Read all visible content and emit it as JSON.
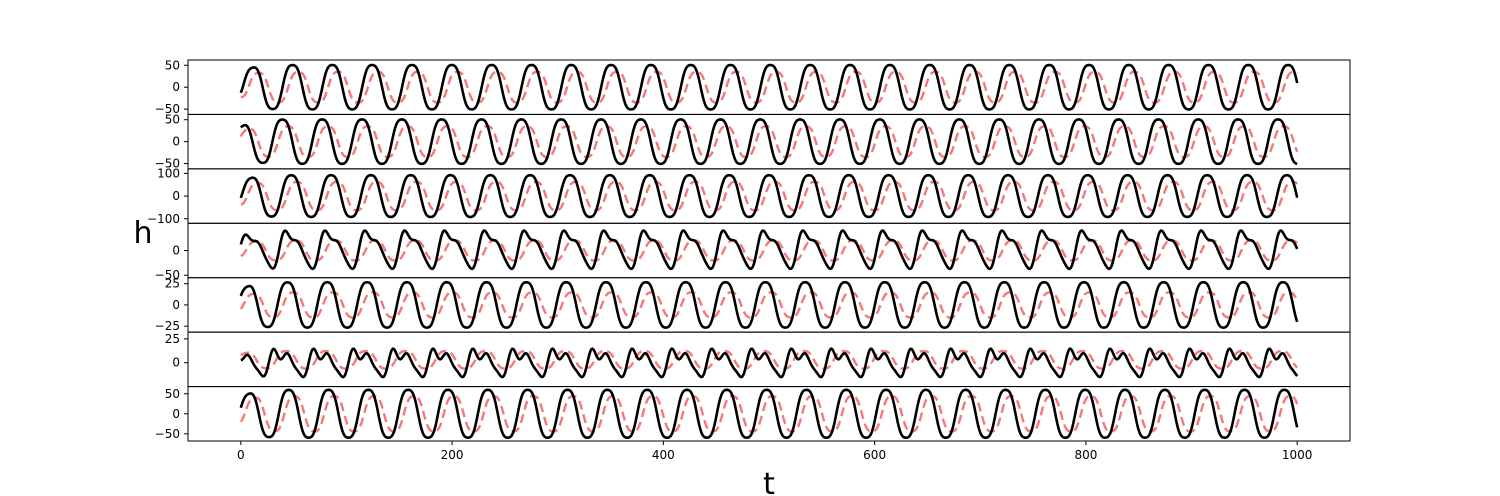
{
  "chart_data": {
    "type": "line",
    "xlabel": "t",
    "ylabel": "h",
    "xlim": [
      -50,
      1050
    ],
    "xticks": [
      0,
      200,
      400,
      600,
      800,
      1000
    ],
    "t_range": [
      0,
      1000
    ],
    "colors": {
      "solid": "#000000",
      "dashed": "#f47a7a"
    },
    "grid": false,
    "panels": [
      {
        "ylim": [
          -62,
          62
        ],
        "yticks": [
          50,
          0,
          -50
        ],
        "solid": {
          "amplitude": 55,
          "period": 37.7,
          "phase": -0.3,
          "shape": "sine"
        },
        "dashed": {
          "amplitude": 38,
          "period": 37.7,
          "phase": -1.2,
          "shape": "sine"
        }
      },
      {
        "ylim": [
          -62,
          62
        ],
        "yticks": [
          50,
          0,
          -50
        ],
        "solid": {
          "amplitude": 55,
          "period": 37.7,
          "phase": 1.3,
          "shape": "sine"
        },
        "dashed": {
          "amplitude": 38,
          "period": 37.7,
          "phase": 0.4,
          "shape": "sine"
        }
      },
      {
        "ylim": [
          -120,
          120
        ],
        "yticks": [
          100,
          0,
          -100
        ],
        "solid": {
          "amplitude": 100,
          "period": 37.7,
          "phase": -0.1,
          "shape": "sine"
        },
        "dashed": {
          "amplitude": 68,
          "period": 37.7,
          "phase": -1.0,
          "shape": "sine"
        }
      },
      {
        "ylim": [
          -55,
          55
        ],
        "yticks": [
          0,
          -50
        ],
        "solid": {
          "amplitude": 42,
          "offset": 4,
          "period": 37.7,
          "phase": 0.1,
          "shape": "sawtooth"
        },
        "dashed": {
          "amplitude": 22,
          "offset": 0,
          "period": 37.7,
          "phase": -0.8,
          "shape": "sine"
        }
      },
      {
        "ylim": [
          -32,
          32
        ],
        "yticks": [
          25,
          0,
          -25
        ],
        "solid": {
          "amplitude": 29,
          "period": 37.7,
          "phase": 0.5,
          "shape": "sine"
        },
        "dashed": {
          "amplitude": 16,
          "period": 37.7,
          "phase": -0.4,
          "shape": "sine"
        }
      },
      {
        "ylim": [
          -25,
          32
        ],
        "yticks": [
          25,
          0
        ],
        "solid": {
          "amplitude": 16,
          "offset": 1,
          "period": 37.7,
          "phase": 1.6,
          "shape": "spiky"
        },
        "dashed": {
          "amplitude": 10,
          "offset": 3,
          "period": 37.7,
          "phase": 0.7,
          "shape": "sine"
        }
      },
      {
        "ylim": [
          -68,
          68
        ],
        "yticks": [
          50,
          0,
          -50
        ],
        "solid": {
          "amplitude": 65,
          "period": 37.7,
          "phase": 0.3,
          "shape": "sine"
        },
        "dashed": {
          "amplitude": 48,
          "period": 37.7,
          "phase": -0.6,
          "shape": "sine"
        }
      }
    ]
  }
}
